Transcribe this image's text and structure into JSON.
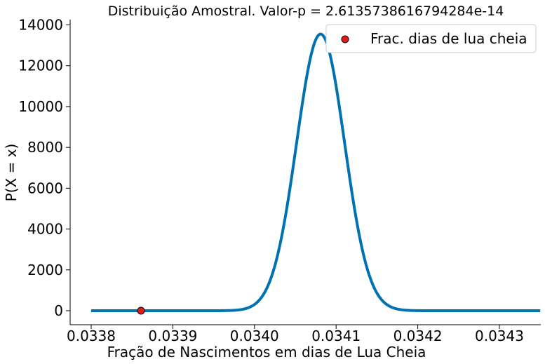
{
  "chart_data": {
    "type": "line",
    "title": "Distribuição Amostral. Valor-p = 2.6135738616794284e-14",
    "xlabel": "Fração de Nascimentos em dias de Lua Cheia",
    "ylabel": "P(X = x)",
    "xlim": [
      0.0338,
      0.03435
    ],
    "ylim": [
      -700,
      14200
    ],
    "xticks": [
      0.0338,
      0.0339,
      0.034,
      0.0341,
      0.0342,
      0.0343
    ],
    "xtick_labels": [
      "0.0338",
      "0.0339",
      "0.0340",
      "0.0341",
      "0.0342",
      "0.0343"
    ],
    "yticks": [
      0,
      2000,
      4000,
      6000,
      8000,
      10000,
      12000,
      14000
    ],
    "ytick_labels": [
      "0",
      "2000",
      "4000",
      "6000",
      "8000",
      "10000",
      "12000",
      "14000"
    ],
    "grid": false,
    "legend_position": "top-right",
    "series": [
      {
        "kind": "normal-pdf-curve",
        "color": "#0072b2",
        "x_range": [
          0.0338,
          0.03435
        ],
        "mean": 0.034081,
        "std": 2.94e-05,
        "peak": 13550
      },
      {
        "kind": "scatter",
        "name": "Frac. dias de lua cheia",
        "color": "#e31a1c",
        "edgecolor": "#000000",
        "points": [
          {
            "x": 0.033861,
            "y": 0
          }
        ]
      }
    ]
  }
}
